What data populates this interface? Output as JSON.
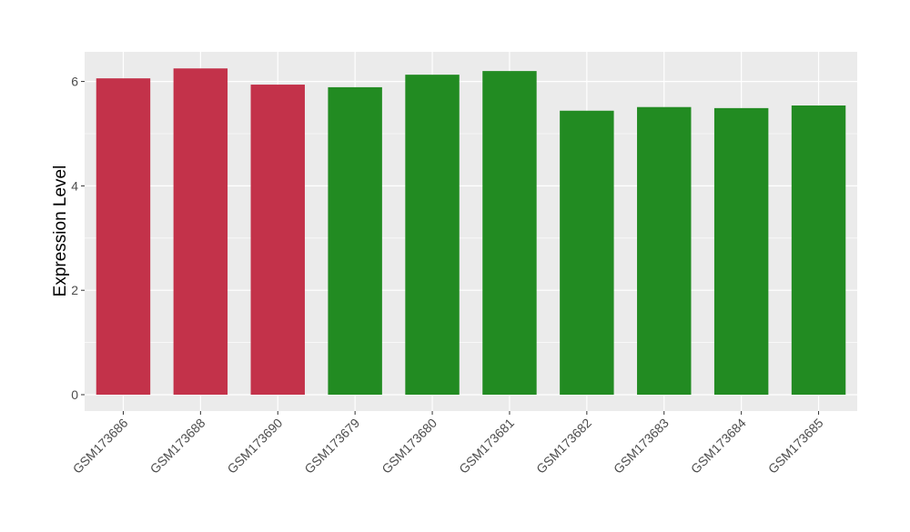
{
  "chart_data": {
    "type": "bar",
    "title": "",
    "xlabel": "",
    "ylabel": "Expression Level",
    "ylim": [
      -0.3,
      6.55
    ],
    "yticks": [
      0,
      2,
      4,
      6
    ],
    "grid": true,
    "categories": [
      "GSM173686",
      "GSM173688",
      "GSM173690",
      "GSM173679",
      "GSM173680",
      "GSM173681",
      "GSM173682",
      "GSM173683",
      "GSM173684",
      "GSM173685"
    ],
    "values": [
      6.06,
      6.25,
      5.94,
      5.89,
      6.13,
      6.2,
      5.44,
      5.51,
      5.49,
      5.54
    ],
    "bar_colors": [
      "#c3324a",
      "#c3324a",
      "#c3324a",
      "#228b22",
      "#228b22",
      "#228b22",
      "#228b22",
      "#228b22",
      "#228b22",
      "#228b22"
    ],
    "panel_background": "#ebebeb",
    "legend": "none"
  }
}
